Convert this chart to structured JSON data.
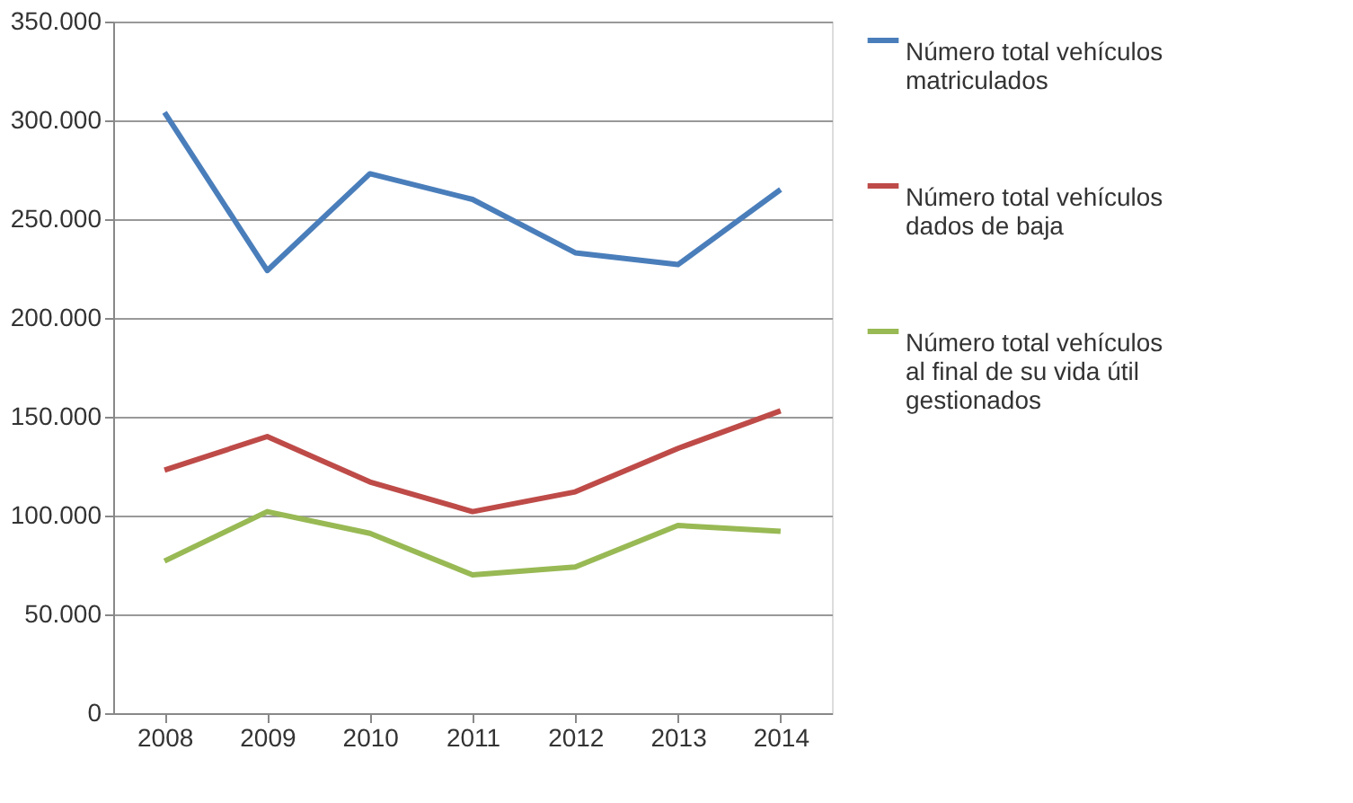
{
  "chart_data": {
    "type": "line",
    "categories": [
      "2008",
      "2009",
      "2010",
      "2011",
      "2012",
      "2013",
      "2014"
    ],
    "ylim": [
      0,
      350000
    ],
    "yticks": [
      {
        "value": 0,
        "label": "0"
      },
      {
        "value": 50000,
        "label": "50.000"
      },
      {
        "value": 100000,
        "label": "100.000"
      },
      {
        "value": 150000,
        "label": "150.000"
      },
      {
        "value": 200000,
        "label": "200.000"
      },
      {
        "value": 250000,
        "label": "250.000"
      },
      {
        "value": 300000,
        "label": "300.000"
      },
      {
        "value": 350000,
        "label": "350.000"
      }
    ],
    "grid": "y",
    "legend": "right",
    "marker": "none",
    "line_style": "solid",
    "series": [
      {
        "name": "Número total vehículos matriculados",
        "color": "#4a7ebb",
        "values": [
          304000,
          224000,
          273000,
          260000,
          233000,
          227000,
          265000
        ]
      },
      {
        "name": "Número total vehículos dados de baja",
        "color": "#be4b48",
        "values": [
          123000,
          140000,
          117000,
          102000,
          112000,
          134000,
          153000
        ]
      },
      {
        "name": "Número total vehículos al final de su vida útil gestionados",
        "color": "#98b954",
        "values": [
          77000,
          102000,
          91000,
          70000,
          74000,
          95000,
          92000
        ]
      }
    ]
  }
}
